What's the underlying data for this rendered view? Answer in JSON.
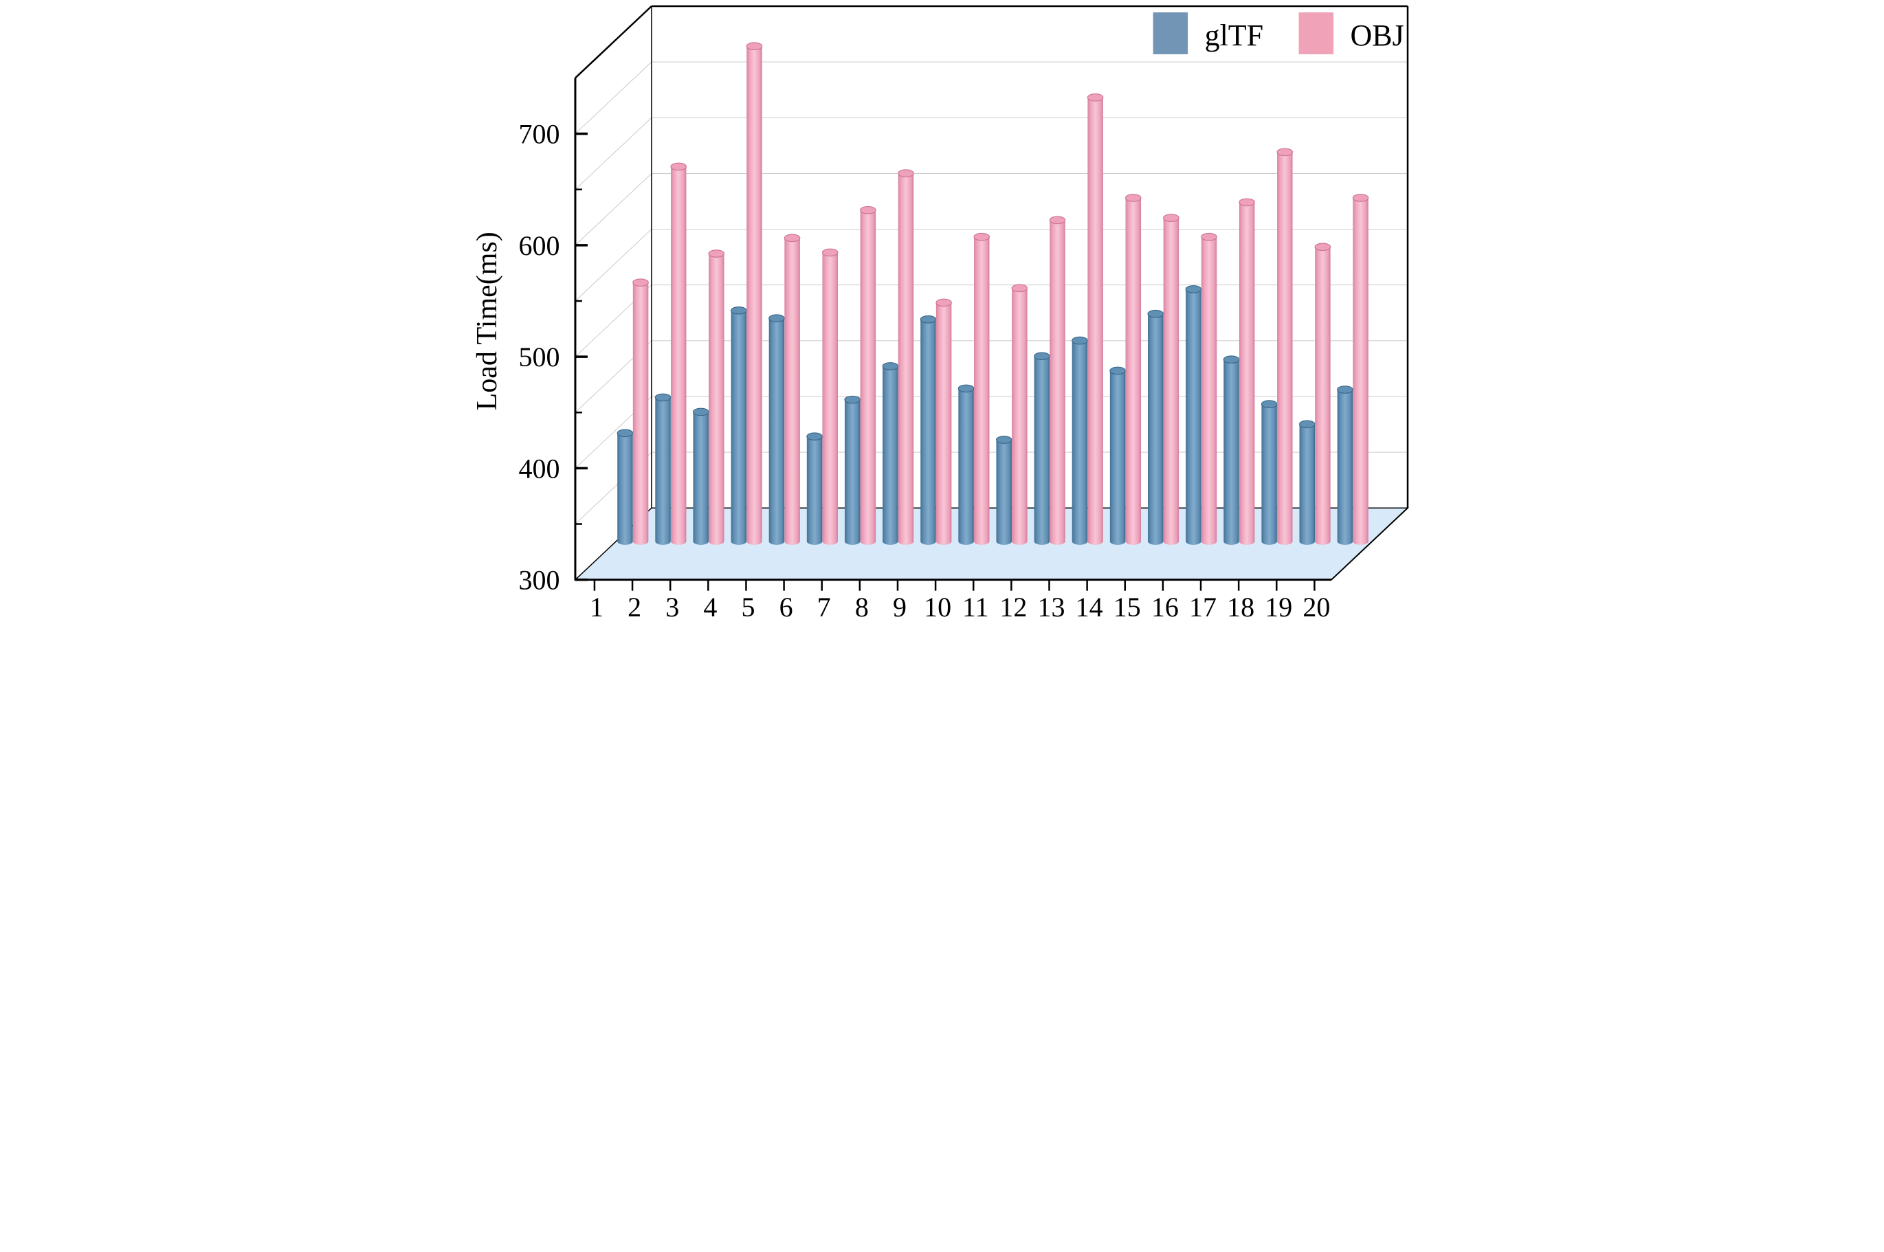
{
  "chart_data": {
    "type": "bar",
    "style": "3d-cylinder-grouped",
    "title": "",
    "xlabel": "",
    "ylabel": "Load Time(ms)",
    "categories": [
      "1",
      "2",
      "3",
      "4",
      "5",
      "6",
      "7",
      "8",
      "9",
      "10",
      "11",
      "12",
      "13",
      "14",
      "15",
      "16",
      "17",
      "18",
      "19",
      "20"
    ],
    "series": [
      {
        "name": "glTF",
        "values": [
          397,
          429,
          416,
          507,
          500,
          394,
          427,
          457,
          499,
          437,
          391,
          466,
          480,
          453,
          504,
          526,
          463,
          423,
          405,
          436
        ]
      },
      {
        "name": "OBJ",
        "values": [
          532,
          636,
          558,
          744,
          572,
          559,
          597,
          630,
          514,
          573,
          527,
          588,
          698,
          608,
          590,
          573,
          604,
          649,
          564,
          608
        ]
      }
    ],
    "ylim": [
      300,
      750
    ],
    "ytick_major": [
      300,
      400,
      500,
      600,
      700
    ],
    "ytick_minor_step": 50,
    "grid": "back-wall horizontal + front-to-back diagonals, 50ms spacing",
    "legend_position": "top-right inside frame",
    "colors": {
      "gltf_main": "#6f9cc0",
      "gltf_edge": "#447297",
      "gltf_light": "#82abcc",
      "gltf_cap": "#6090b4",
      "gltf_cap_rim": "#3a678a",
      "obj_main": "#f2a8c0",
      "obj_edge": "#d886a2",
      "obj_light": "#f8c6d6",
      "obj_cap": "#efa0ba",
      "obj_cap_rim": "#cb7390",
      "floor": "#d8eaf9",
      "gridline": "#c6c6c6",
      "frame": "#000000"
    }
  }
}
